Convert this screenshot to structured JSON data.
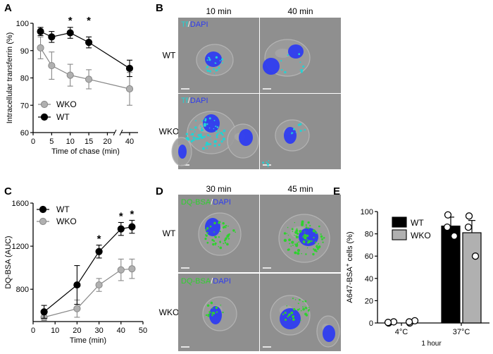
{
  "panels": {
    "A": "A",
    "B": "B",
    "C": "C",
    "D": "D",
    "E": "E"
  },
  "colors": {
    "wt_line": "#000000",
    "wko_line": "#888888",
    "wko_fill": "#b0b0b0",
    "tf_stain": "#22d3d3",
    "dapi": "#2e3cf0",
    "dq_bsa": "#2fd12f",
    "micro_bg": "#8f8f8f"
  },
  "panel_b": {
    "col_labels": [
      "10 min",
      "40 min"
    ],
    "row_labels": [
      "WT",
      "WKO"
    ],
    "stain_a": "Tf",
    "stain_sep": "/",
    "stain_b": "DAPI"
  },
  "panel_d": {
    "col_labels": [
      "30 min",
      "45 min"
    ],
    "row_labels": [
      "WT",
      "WKO"
    ],
    "stain_a": "DQ-BSA",
    "stain_sep": "/",
    "stain_b": "DAPI"
  },
  "chart_data": [
    {
      "panel": "A",
      "type": "line",
      "xlabel": "Time of chase (min)",
      "ylabel": "Intracellular transferrin (%)",
      "ylim": [
        60,
        100
      ],
      "yticks": [
        60,
        70,
        80,
        90,
        100
      ],
      "xticks": [
        0,
        5,
        10,
        15,
        20,
        40
      ],
      "x_axis_break": [
        22,
        38
      ],
      "series": [
        {
          "name": "WT",
          "x": [
            2,
            5,
            10,
            15,
            40
          ],
          "y": [
            97,
            95,
            96.5,
            93,
            83.5
          ],
          "err": [
            1.5,
            2,
            2,
            2,
            3
          ]
        },
        {
          "name": "WKO",
          "x": [
            2,
            5,
            10,
            15,
            40
          ],
          "y": [
            91,
            84.5,
            81,
            79.5,
            76
          ],
          "err": [
            4,
            5,
            4,
            3.5,
            6
          ]
        }
      ],
      "significance": [
        {
          "x": 10,
          "label": "*"
        },
        {
          "x": 15,
          "label": "*"
        }
      ],
      "legend_position": "bottom-left"
    },
    {
      "panel": "C",
      "type": "line",
      "xlabel": "Time (min)",
      "ylabel": "DQ-BSA (AUC)",
      "ylim": [
        500,
        1600
      ],
      "xlim": [
        0,
        50
      ],
      "yticks": [
        800,
        1200,
        1600
      ],
      "xticks": [
        0,
        10,
        20,
        30,
        40,
        50
      ],
      "series": [
        {
          "name": "WT",
          "x": [
            5,
            20,
            30,
            40,
            45
          ],
          "y": [
            590,
            840,
            1150,
            1360,
            1380
          ],
          "err": [
            60,
            180,
            60,
            60,
            60
          ]
        },
        {
          "name": "WKO",
          "x": [
            5,
            20,
            30,
            40,
            45
          ],
          "y": [
            540,
            620,
            840,
            980,
            990
          ],
          "err": [
            30,
            80,
            60,
            100,
            90
          ]
        }
      ],
      "significance": [
        {
          "x": 30,
          "label": "*"
        },
        {
          "x": 40,
          "label": "*"
        },
        {
          "x": 45,
          "label": "*"
        }
      ],
      "legend_position": "top-left"
    },
    {
      "panel": "E",
      "type": "bar",
      "ylabel_main": "A647-BSA",
      "ylabel_sup": "+",
      "ylabel_rest": " cells (%)",
      "ylim": [
        0,
        100
      ],
      "yticks": [
        0,
        20,
        40,
        60,
        80,
        100
      ],
      "categories": [
        "4°C",
        "37°C"
      ],
      "group_label": "1 hour",
      "series": [
        {
          "name": "WT",
          "values": [
            0.5,
            87
          ],
          "err": [
            0.5,
            8
          ],
          "points": [
            [
              0,
              1,
              0.5
            ],
            [
              97,
              78,
              86
            ]
          ]
        },
        {
          "name": "WKO",
          "values": [
            1,
            81
          ],
          "err": [
            1,
            11
          ],
          "points": [
            [
              0,
              2,
              1
            ],
            [
              96,
              60,
              86
            ]
          ]
        }
      ],
      "legend_position": "top-right"
    }
  ]
}
